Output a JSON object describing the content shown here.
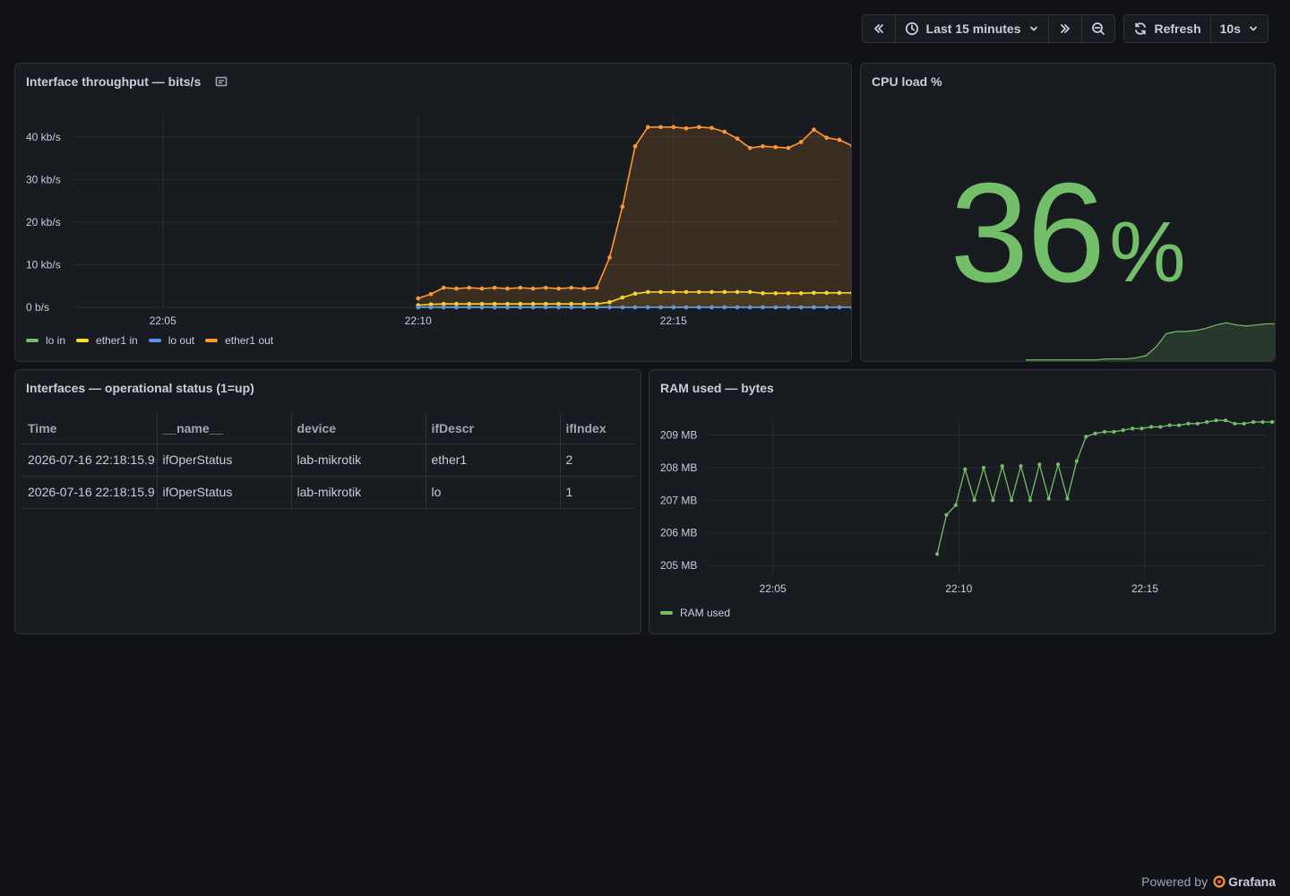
{
  "toolbar": {
    "time_range_label": "Last 15 minutes",
    "refresh_label": "Refresh",
    "refresh_interval": "10s"
  },
  "panels": {
    "throughput": {
      "title": "Interface throughput — bits/s"
    },
    "cpu": {
      "title": "CPU load %",
      "value": "36",
      "unit": "%"
    },
    "ifstatus": {
      "title": "Interfaces — operational status (1=up)"
    },
    "ram": {
      "title": "RAM used — bytes"
    }
  },
  "table": {
    "columns": [
      "Time",
      "__name__",
      "device",
      "ifDescr",
      "ifIndex"
    ],
    "rows": [
      [
        "2026-07-16 22:18:15.9",
        "ifOperStatus",
        "lab-mikrotik",
        "ether1",
        "2"
      ],
      [
        "2026-07-16 22:18:15.9",
        "ifOperStatus",
        "lab-mikrotik",
        "lo",
        "1"
      ]
    ]
  },
  "footer": {
    "powered_by": "Powered by",
    "brand": "Grafana"
  },
  "colors": {
    "green": "#73bf69",
    "yellow": "#fade2a",
    "blue": "#5794f2",
    "orange": "#ff9830"
  },
  "chart_data": [
    {
      "type": "line",
      "title": "Interface throughput — bits/s",
      "x_ticks": [
        "22:05",
        "22:10",
        "22:15"
      ],
      "xlim": [
        "22:03:15",
        "22:18:15"
      ],
      "y_ticks": [
        "0 b/s",
        "10 kb/s",
        "20 kb/s",
        "30 kb/s",
        "40 kb/s"
      ],
      "ylim": [
        0,
        45
      ],
      "y_unit": "kb/s",
      "grid": true,
      "legend_position": "bottom-left",
      "x_start": "22:10",
      "x_step_seconds": 15,
      "series": [
        {
          "name": "lo in",
          "color": "#73bf69",
          "values": [
            0,
            0,
            0,
            0,
            0,
            0,
            0,
            0,
            0,
            0,
            0,
            0,
            0,
            0,
            0,
            0,
            0,
            0,
            0,
            0,
            0,
            0,
            0,
            0,
            0,
            0,
            0,
            0,
            0,
            0,
            0,
            0,
            0,
            0,
            0,
            0,
            0
          ]
        },
        {
          "name": "ether1 in",
          "color": "#fade2a",
          "values": [
            0.5,
            0.7,
            0.8,
            0.8,
            0.8,
            0.8,
            0.8,
            0.8,
            0.8,
            0.8,
            0.8,
            0.8,
            0.8,
            0.8,
            0.8,
            1.2,
            2.3,
            3.2,
            3.6,
            3.6,
            3.6,
            3.6,
            3.6,
            3.6,
            3.6,
            3.6,
            3.6,
            3.3,
            3.3,
            3.3,
            3.3,
            3.4,
            3.4,
            3.4,
            3.4,
            3.4,
            3.4
          ]
        },
        {
          "name": "lo out",
          "color": "#5794f2",
          "values": [
            0,
            0,
            0,
            0,
            0,
            0,
            0,
            0,
            0,
            0,
            0,
            0,
            0,
            0,
            0,
            0,
            0,
            0,
            0,
            0,
            0,
            0,
            0,
            0,
            0,
            0,
            0,
            0,
            0,
            0,
            0,
            0,
            0,
            0,
            0,
            0,
            0
          ]
        },
        {
          "name": "ether1 out",
          "color": "#ff9830",
          "values": [
            2.1,
            3.1,
            4.6,
            4.4,
            4.6,
            4.4,
            4.6,
            4.4,
            4.6,
            4.4,
            4.6,
            4.4,
            4.6,
            4.4,
            4.6,
            11.7,
            23.6,
            37.8,
            42.3,
            42.3,
            42.3,
            42.0,
            42.3,
            42.1,
            41.2,
            39.6,
            37.4,
            37.8,
            37.6,
            37.4,
            38.8,
            41.7,
            39.8,
            39.3,
            37.9,
            40.4,
            40.6
          ]
        }
      ]
    },
    {
      "type": "line",
      "title": "RAM used — bytes",
      "x_ticks": [
        "22:05",
        "22:10",
        "22:15"
      ],
      "xlim": [
        "22:03:15",
        "22:18:15"
      ],
      "y_ticks": [
        "205 MB",
        "206 MB",
        "207 MB",
        "208 MB",
        "209 MB"
      ],
      "ylim": [
        204.7,
        209.4
      ],
      "y_unit": "MB",
      "grid": true,
      "legend_position": "bottom-left",
      "series": [
        {
          "name": "RAM used",
          "color": "#73bf69",
          "x_start": "22:09:25",
          "x_step_seconds": 15,
          "values": [
            205.35,
            206.55,
            206.85,
            207.95,
            207.0,
            208.0,
            207.0,
            208.05,
            207.0,
            208.05,
            207.0,
            208.1,
            207.05,
            208.1,
            207.05,
            208.2,
            208.95,
            209.05,
            209.1,
            209.1,
            209.15,
            209.2,
            209.2,
            209.25,
            209.25,
            209.3,
            209.3,
            209.35,
            209.35,
            209.4,
            209.45,
            209.45,
            209.35,
            209.35,
            209.4,
            209.4,
            209.4,
            209.45
          ]
        }
      ]
    },
    {
      "type": "area",
      "title": "CPU load % (sparkline)",
      "values": [
        1,
        1,
        1,
        1,
        1,
        1,
        1,
        1,
        2,
        2,
        2,
        3,
        5,
        13,
        25,
        27,
        27,
        28,
        30,
        33,
        35,
        33,
        32,
        33,
        34,
        34
      ]
    }
  ]
}
